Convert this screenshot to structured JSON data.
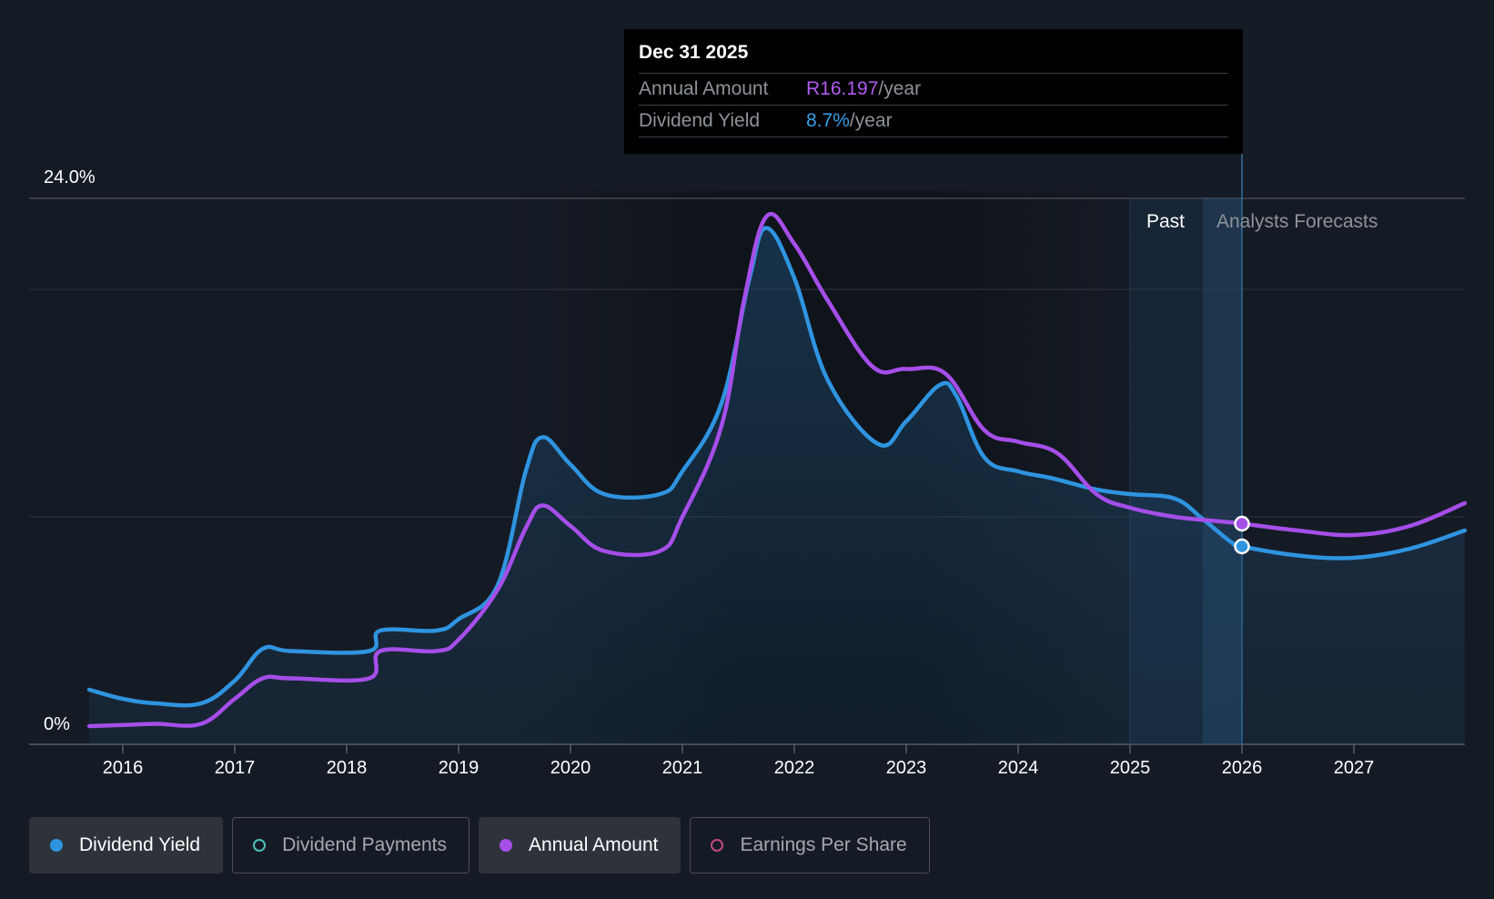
{
  "chart_data": {
    "type": "line",
    "x_axis": {
      "ticks": [
        "2016",
        "2017",
        "2018",
        "2019",
        "2020",
        "2021",
        "2022",
        "2023",
        "2024",
        "2025",
        "2026",
        "2027"
      ]
    },
    "y_axis": {
      "top_label": "24.0%",
      "bottom_label": "0%",
      "ylim": [
        0,
        24
      ]
    },
    "regions": {
      "past_label": "Past",
      "forecast_label": "Analysts Forecasts"
    },
    "series": [
      {
        "name": "Dividend Yield",
        "color": "#2f94e0",
        "points": [
          [
            2015.7,
            2.4
          ],
          [
            2016.0,
            2.0
          ],
          [
            2016.3,
            1.8
          ],
          [
            2016.7,
            1.8
          ],
          [
            2017.0,
            2.8
          ],
          [
            2017.25,
            4.2
          ],
          [
            2017.5,
            4.1
          ],
          [
            2018.2,
            4.1
          ],
          [
            2018.3,
            5.0
          ],
          [
            2018.8,
            5.0
          ],
          [
            2019.0,
            5.5
          ],
          [
            2019.35,
            7.0
          ],
          [
            2019.6,
            12.0
          ],
          [
            2019.75,
            13.5
          ],
          [
            2020.0,
            12.3
          ],
          [
            2020.3,
            11.0
          ],
          [
            2020.8,
            11.0
          ],
          [
            2021.0,
            12.0
          ],
          [
            2021.35,
            15.0
          ],
          [
            2021.6,
            20.5
          ],
          [
            2021.75,
            22.7
          ],
          [
            2022.0,
            20.5
          ],
          [
            2022.3,
            16.0
          ],
          [
            2022.75,
            13.2
          ],
          [
            2023.0,
            14.2
          ],
          [
            2023.3,
            15.8
          ],
          [
            2023.45,
            15.3
          ],
          [
            2023.7,
            12.6
          ],
          [
            2024.0,
            12.0
          ],
          [
            2024.3,
            11.7
          ],
          [
            2024.7,
            11.2
          ],
          [
            2025.0,
            11.0
          ],
          [
            2025.4,
            10.8
          ],
          [
            2025.65,
            9.9
          ],
          [
            2025.9,
            8.9
          ],
          [
            2026.0,
            8.7
          ],
          [
            2026.5,
            8.3
          ],
          [
            2027.0,
            8.2
          ],
          [
            2027.5,
            8.6
          ],
          [
            2027.99,
            9.4
          ]
        ]
      },
      {
        "name": "Annual Amount",
        "color": "#a54ee8",
        "points": [
          [
            2015.7,
            0.8
          ],
          [
            2016.0,
            0.85
          ],
          [
            2016.3,
            0.9
          ],
          [
            2016.7,
            0.9
          ],
          [
            2017.0,
            2.0
          ],
          [
            2017.25,
            2.9
          ],
          [
            2017.5,
            2.9
          ],
          [
            2018.2,
            2.9
          ],
          [
            2018.3,
            4.1
          ],
          [
            2018.8,
            4.1
          ],
          [
            2019.0,
            4.6
          ],
          [
            2019.35,
            6.8
          ],
          [
            2019.6,
            9.5
          ],
          [
            2019.75,
            10.5
          ],
          [
            2020.0,
            9.6
          ],
          [
            2020.3,
            8.5
          ],
          [
            2020.8,
            8.5
          ],
          [
            2021.0,
            10.0
          ],
          [
            2021.35,
            14.0
          ],
          [
            2021.55,
            19.5
          ],
          [
            2021.75,
            23.2
          ],
          [
            2022.0,
            22.0
          ],
          [
            2022.3,
            19.5
          ],
          [
            2022.7,
            16.6
          ],
          [
            2023.0,
            16.5
          ],
          [
            2023.35,
            16.3
          ],
          [
            2023.7,
            13.8
          ],
          [
            2024.0,
            13.3
          ],
          [
            2024.35,
            12.8
          ],
          [
            2024.7,
            11.0
          ],
          [
            2025.0,
            10.4
          ],
          [
            2025.4,
            10.0
          ],
          [
            2025.8,
            9.8
          ],
          [
            2026.0,
            9.7
          ],
          [
            2026.5,
            9.4
          ],
          [
            2027.0,
            9.2
          ],
          [
            2027.5,
            9.6
          ],
          [
            2027.99,
            10.6
          ]
        ]
      }
    ],
    "highlight": {
      "x": 2026.0
    }
  },
  "tooltip": {
    "date": "Dec 31 2025",
    "rows": [
      {
        "label": "Annual Amount",
        "value": "R16.197",
        "unit": "/year"
      },
      {
        "label": "Dividend Yield",
        "value": "8.7%",
        "unit": "/year"
      }
    ]
  },
  "legend": [
    {
      "label": "Dividend Yield",
      "color": "#2f94e0",
      "active": true,
      "filled": true
    },
    {
      "label": "Dividend Payments",
      "color": "#4fc0b8",
      "active": false,
      "filled": false
    },
    {
      "label": "Annual Amount",
      "color": "#a54ee8",
      "active": true,
      "filled": true
    },
    {
      "label": "Earnings Per Share",
      "color": "#c04a7c",
      "active": false,
      "filled": false
    }
  ]
}
